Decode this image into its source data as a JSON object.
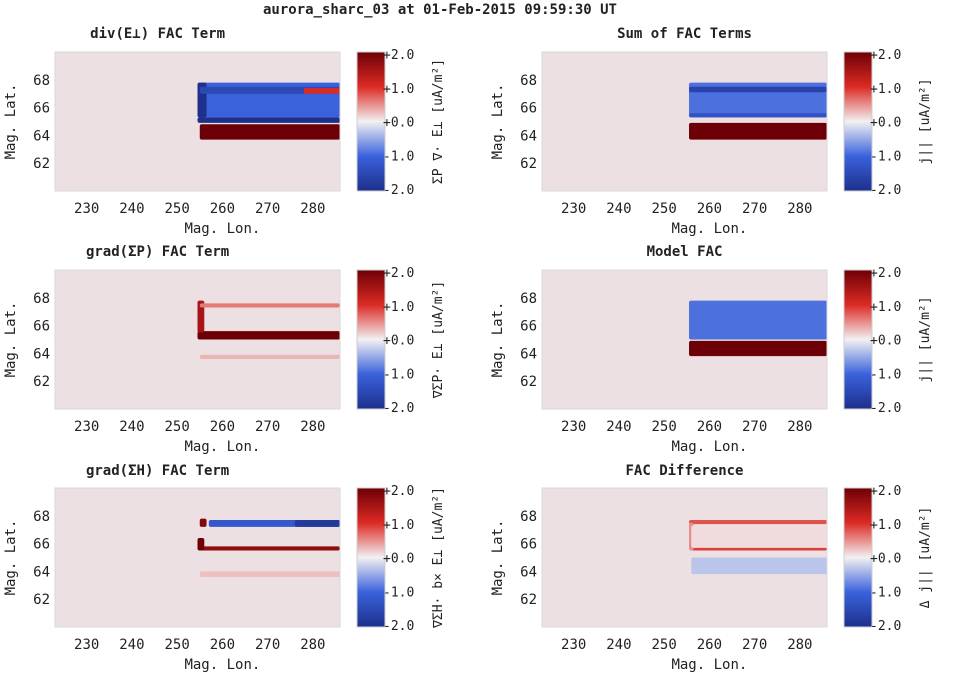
{
  "figure_title": "aurora_sharc_03 at 01-Feb-2015 09:59:30 UT",
  "colors": {
    "background": "#ede0e3",
    "colormap": [
      "#1e2f8c",
      "#3a62dc",
      "#f2f0f2",
      "#dc2a24",
      "#6d0006"
    ]
  },
  "chart_data": [
    {
      "type": "heatmap",
      "title": "div(E⊥) FAC Term",
      "xlabel": "Mag. Lon.",
      "ylabel": "Mag. Lat.",
      "xlim": [
        223,
        286
      ],
      "ylim": [
        60,
        70
      ],
      "xticks": [
        230,
        240,
        250,
        260,
        270,
        280
      ],
      "yticks": [
        62,
        64,
        66,
        68
      ],
      "colorbar": {
        "label": "ΣP ∇· E⊥ [uA/m²]",
        "ticks": [
          "+2.0",
          "+1.0",
          "+0.0",
          "-1.0",
          "-2.0"
        ],
        "clim": [
          -2,
          2
        ]
      },
      "features": [
        {
          "x0": 254.5,
          "x1": 286,
          "y0": 65.3,
          "y1": 67.8,
          "value": -1.0
        },
        {
          "x0": 254.5,
          "x1": 286,
          "y0": 64.9,
          "y1": 65.3,
          "value": -2.0
        },
        {
          "x0": 254.5,
          "x1": 256.5,
          "y0": 65.3,
          "y1": 67.8,
          "value": -2.0
        },
        {
          "x0": 255,
          "x1": 286,
          "y0": 67.0,
          "y1": 67.5,
          "value": -1.5
        },
        {
          "x0": 278,
          "x1": 286,
          "y0": 67.0,
          "y1": 67.4,
          "value": 1.0
        },
        {
          "x0": 255,
          "x1": 286,
          "y0": 63.7,
          "y1": 64.8,
          "value": 2.0
        }
      ]
    },
    {
      "type": "heatmap",
      "title": "Sum of FAC Terms",
      "xlabel": "Mag. Lon.",
      "ylabel": "Mag. Lat.",
      "xlim": [
        223,
        286
      ],
      "ylim": [
        60,
        70
      ],
      "xticks": [
        230,
        240,
        250,
        260,
        270,
        280
      ],
      "yticks": [
        62,
        64,
        66,
        68
      ],
      "colorbar": {
        "label": "j|| [uA/m²]",
        "ticks": [
          "+2.0",
          "+1.0",
          "+0.0",
          "-1.0",
          "-2.0"
        ],
        "clim": [
          -2,
          2
        ]
      },
      "features": [
        {
          "x0": 255.5,
          "x1": 286,
          "y0": 65.3,
          "y1": 67.8,
          "value": -0.9
        },
        {
          "x0": 255.5,
          "x1": 286,
          "y0": 67.1,
          "y1": 67.5,
          "value": -1.6
        },
        {
          "x0": 255.5,
          "x1": 286,
          "y0": 65.3,
          "y1": 65.6,
          "value": -1.3
        },
        {
          "x0": 255.5,
          "x1": 286,
          "y0": 63.7,
          "y1": 64.9,
          "value": 2.0
        }
      ]
    },
    {
      "type": "heatmap",
      "title": "grad(ΣP) FAC Term",
      "xlabel": "Mag. Lon.",
      "ylabel": "Mag. Lat.",
      "xlim": [
        223,
        286
      ],
      "ylim": [
        60,
        70
      ],
      "xticks": [
        230,
        240,
        250,
        260,
        270,
        280
      ],
      "yticks": [
        62,
        64,
        66,
        68
      ],
      "colorbar": {
        "label": "∇ΣP· E⊥ [uA/m²]",
        "ticks": [
          "+2.0",
          "+1.0",
          "+0.0",
          "-1.0",
          "-2.0"
        ],
        "clim": [
          -2,
          2
        ]
      },
      "features": [
        {
          "x0": 254.5,
          "x1": 286,
          "y0": 65.0,
          "y1": 65.6,
          "value": 2.0
        },
        {
          "x0": 254.5,
          "x1": 256,
          "y0": 65.5,
          "y1": 67.8,
          "value": 1.5
        },
        {
          "x0": 255,
          "x1": 286,
          "y0": 67.3,
          "y1": 67.6,
          "value": 0.6
        },
        {
          "x0": 255,
          "x1": 286,
          "y0": 63.6,
          "y1": 63.9,
          "value": 0.3
        }
      ]
    },
    {
      "type": "heatmap",
      "title": "Model FAC",
      "xlabel": "Mag. Lon.",
      "ylabel": "Mag. Lat.",
      "xlim": [
        223,
        286
      ],
      "ylim": [
        60,
        70
      ],
      "xticks": [
        230,
        240,
        250,
        260,
        270,
        280
      ],
      "yticks": [
        62,
        64,
        66,
        68
      ],
      "colorbar": {
        "label": "j|| [uA/m²]",
        "ticks": [
          "+2.0",
          "+1.0",
          "+0.0",
          "-1.0",
          "-2.0"
        ],
        "clim": [
          -2,
          2
        ]
      },
      "features": [
        {
          "x0": 255.5,
          "x1": 286,
          "y0": 65.0,
          "y1": 67.8,
          "value": -0.9
        },
        {
          "x0": 255.5,
          "x1": 286,
          "y0": 63.8,
          "y1": 64.9,
          "value": 2.0
        }
      ]
    },
    {
      "type": "heatmap",
      "title": "grad(ΣH) FAC Term",
      "xlabel": "Mag. Lon.",
      "ylabel": "Mag. Lat.",
      "xlim": [
        223,
        286
      ],
      "ylim": [
        60,
        70
      ],
      "xticks": [
        230,
        240,
        250,
        260,
        270,
        280
      ],
      "yticks": [
        62,
        64,
        66,
        68
      ],
      "colorbar": {
        "label": "∇ΣH· b× E⊥ [uA/m²]",
        "ticks": [
          "+2.0",
          "+1.0",
          "+0.0",
          "-1.0",
          "-2.0"
        ],
        "clim": [
          -2,
          2
        ]
      },
      "features": [
        {
          "x0": 257,
          "x1": 286,
          "y0": 67.2,
          "y1": 67.7,
          "value": -1.2
        },
        {
          "x0": 276,
          "x1": 286,
          "y0": 67.2,
          "y1": 67.7,
          "value": -1.8
        },
        {
          "x0": 255,
          "x1": 256.5,
          "y0": 67.2,
          "y1": 67.8,
          "value": 1.8
        },
        {
          "x0": 255,
          "x1": 286,
          "y0": 65.5,
          "y1": 65.8,
          "value": 1.7
        },
        {
          "x0": 254.5,
          "x1": 256,
          "y0": 65.5,
          "y1": 66.4,
          "value": 2.0
        },
        {
          "x0": 255,
          "x1": 286,
          "y0": 63.6,
          "y1": 64.0,
          "value": 0.25
        }
      ]
    },
    {
      "type": "heatmap",
      "title": "FAC Difference",
      "xlabel": "Mag. Lon.",
      "ylabel": "Mag. Lat.",
      "xlim": [
        223,
        286
      ],
      "ylim": [
        60,
        70
      ],
      "xticks": [
        230,
        240,
        250,
        260,
        270,
        280
      ],
      "yticks": [
        62,
        64,
        66,
        68
      ],
      "colorbar": {
        "label": "Δ j|| [uA/m²]",
        "ticks": [
          "+2.0",
          "+1.0",
          "+0.0",
          "-1.0",
          "-2.0"
        ],
        "clim": [
          -2,
          2
        ]
      },
      "features": [
        {
          "x0": 255.5,
          "x1": 286,
          "y0": 67.4,
          "y1": 67.7,
          "value": 0.8
        },
        {
          "x0": 256,
          "x1": 286,
          "y0": 65.5,
          "y1": 65.7,
          "value": 0.9
        },
        {
          "x0": 255.5,
          "x1": 256.5,
          "y0": 65.5,
          "y1": 67.5,
          "value": 0.5
        },
        {
          "x0": 256,
          "x1": 286,
          "y0": 65.7,
          "y1": 67.3,
          "value": 0.1
        },
        {
          "x0": 256,
          "x1": 286,
          "y0": 63.8,
          "y1": 65.0,
          "value": -0.3
        }
      ]
    }
  ]
}
